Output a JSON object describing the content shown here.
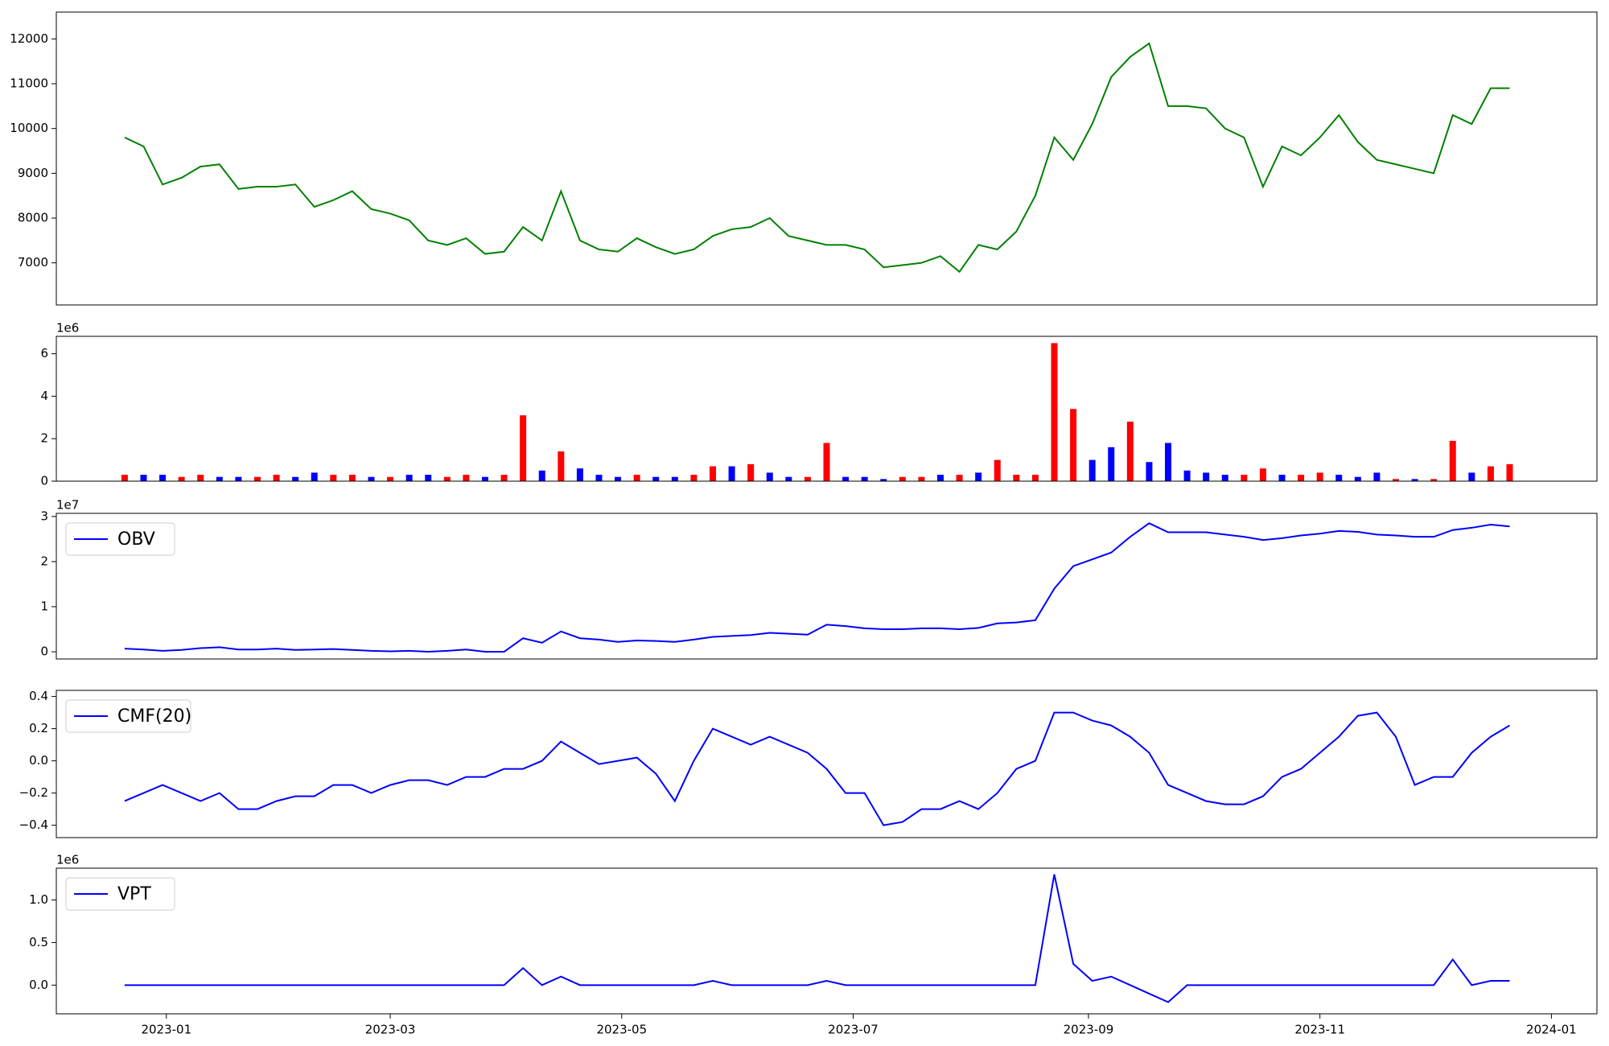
{
  "chart_data": [
    {
      "type": "line",
      "color": "green",
      "x": [
        19347,
        19352,
        19357,
        19362,
        19367,
        19372,
        19377,
        19382,
        19387,
        19392,
        19397,
        19402,
        19407,
        19412,
        19417,
        19422,
        19427,
        19432,
        19437,
        19442,
        19447,
        19452,
        19457,
        19462,
        19467,
        19472,
        19477,
        19482,
        19487,
        19492,
        19497,
        19502,
        19507,
        19512,
        19517,
        19522,
        19527,
        19532,
        19537,
        19542,
        19547,
        19552,
        19557,
        19562,
        19567,
        19572,
        19577,
        19582,
        19587,
        19592,
        19597,
        19602,
        19607,
        19612,
        19617,
        19622,
        19627,
        19632,
        19637,
        19642,
        19647,
        19652,
        19657,
        19662,
        19667,
        19672,
        19677,
        19682,
        19687,
        19692,
        19697,
        19702,
        19707,
        19712
      ],
      "values": [
        9800,
        9600,
        8750,
        8900,
        9150,
        9200,
        8650,
        8700,
        8700,
        8750,
        8250,
        8400,
        8600,
        8200,
        8100,
        7950,
        7500,
        7400,
        7550,
        7200,
        7250,
        7800,
        7500,
        8600,
        7500,
        7300,
        7250,
        7550,
        7350,
        7200,
        7300,
        7600,
        7750,
        7800,
        8000,
        7600,
        7500,
        7400,
        7400,
        7300,
        6900,
        6950,
        7000,
        7150,
        6800,
        7400,
        7300,
        7700,
        8500,
        9800,
        9300,
        10100,
        11150,
        11600,
        11900,
        10500,
        10500,
        10450,
        10000,
        9800,
        8700,
        9600,
        9400,
        9800,
        10300,
        9700,
        9300,
        9200,
        9100,
        9000,
        10300,
        10100,
        10900,
        10900
      ],
      "xlim": [
        19329,
        19735
      ],
      "ylim": [
        6060,
        12600
      ],
      "yticks": [
        7000,
        8000,
        9000,
        10000,
        11000,
        12000
      ]
    },
    {
      "type": "bar",
      "y_offset_label": "1e6",
      "x": [
        19347,
        19352,
        19357,
        19362,
        19367,
        19372,
        19377,
        19382,
        19387,
        19392,
        19397,
        19402,
        19407,
        19412,
        19417,
        19422,
        19427,
        19432,
        19437,
        19442,
        19447,
        19452,
        19457,
        19462,
        19467,
        19472,
        19477,
        19482,
        19487,
        19492,
        19497,
        19502,
        19507,
        19512,
        19517,
        19522,
        19527,
        19532,
        19537,
        19542,
        19547,
        19552,
        19557,
        19562,
        19567,
        19572,
        19577,
        19582,
        19587,
        19592,
        19597,
        19602,
        19607,
        19612,
        19617,
        19622,
        19627,
        19632,
        19637,
        19642,
        19647,
        19652,
        19657,
        19662,
        19667,
        19672,
        19677,
        19682,
        19687,
        19692,
        19697,
        19702,
        19707,
        19712
      ],
      "values": [
        300000,
        300000,
        300000,
        200000,
        300000,
        200000,
        200000,
        200000,
        300000,
        200000,
        400000,
        300000,
        300000,
        200000,
        200000,
        300000,
        300000,
        200000,
        300000,
        200000,
        300000,
        3100000,
        500000,
        1400000,
        600000,
        300000,
        200000,
        300000,
        200000,
        200000,
        300000,
        700000,
        700000,
        800000,
        400000,
        200000,
        200000,
        1800000,
        200000,
        200000,
        100000,
        200000,
        200000,
        300000,
        300000,
        400000,
        1000000,
        300000,
        300000,
        6500000,
        3400000,
        1000000,
        1600000,
        2800000,
        900000,
        1800000,
        500000,
        400000,
        300000,
        300000,
        600000,
        300000,
        300000,
        400000,
        300000,
        200000,
        400000,
        100000,
        100000,
        100000,
        1900000,
        400000,
        700000,
        800000
      ],
      "colors": [
        "red",
        "blue",
        "blue",
        "red",
        "red",
        "blue",
        "blue",
        "red",
        "red",
        "blue",
        "blue",
        "red",
        "red",
        "blue",
        "red",
        "blue",
        "blue",
        "red",
        "red",
        "blue",
        "red",
        "red",
        "blue",
        "red",
        "blue",
        "blue",
        "blue",
        "red",
        "blue",
        "blue",
        "red",
        "red",
        "blue",
        "red",
        "blue",
        "blue",
        "red",
        "red",
        "blue",
        "blue",
        "blue",
        "red",
        "red",
        "blue",
        "red",
        "blue",
        "red",
        "red",
        "red",
        "red",
        "red",
        "blue",
        "blue",
        "red",
        "blue",
        "blue",
        "blue",
        "blue",
        "blue",
        "red",
        "red",
        "blue",
        "red",
        "red",
        "blue",
        "blue",
        "blue",
        "red",
        "blue",
        "red",
        "red",
        "blue",
        "red",
        "red"
      ],
      "xlim": [
        19329,
        19735
      ],
      "ylim": [
        0,
        6820000
      ],
      "yticks": [
        0,
        {
          "value": 2000000,
          "label": "2"
        },
        {
          "value": 4000000,
          "label": "4"
        },
        {
          "value": 6000000,
          "label": "6"
        }
      ]
    },
    {
      "type": "line",
      "y_offset_label": "1e7",
      "legend": "upper left",
      "x": [
        19347,
        19352,
        19357,
        19362,
        19367,
        19372,
        19377,
        19382,
        19387,
        19392,
        19397,
        19402,
        19407,
        19412,
        19417,
        19422,
        19427,
        19432,
        19437,
        19442,
        19447,
        19452,
        19457,
        19462,
        19467,
        19472,
        19477,
        19482,
        19487,
        19492,
        19497,
        19502,
        19507,
        19512,
        19517,
        19522,
        19527,
        19532,
        19537,
        19542,
        19547,
        19552,
        19557,
        19562,
        19567,
        19572,
        19577,
        19582,
        19587,
        19592,
        19597,
        19602,
        19607,
        19612,
        19617,
        19622,
        19627,
        19632,
        19637,
        19642,
        19647,
        19652,
        19657,
        19662,
        19667,
        19672,
        19677,
        19682,
        19687,
        19692,
        19697,
        19702,
        19707,
        19712
      ],
      "series": [
        {
          "name": "OBV",
          "color": "blue",
          "values": [
            700000,
            500000,
            200000,
            400000,
            800000,
            1000000,
            500000,
            500000,
            700000,
            400000,
            500000,
            600000,
            400000,
            200000,
            100000,
            200000,
            0,
            200000,
            500000,
            0,
            0,
            3000000,
            2000000,
            4500000,
            3000000,
            2700000,
            2200000,
            2500000,
            2400000,
            2200000,
            2700000,
            3300000,
            3500000,
            3700000,
            4200000,
            4000000,
            3800000,
            6000000,
            5700000,
            5200000,
            5000000,
            5000000,
            5200000,
            5200000,
            5000000,
            5300000,
            6300000,
            6500000,
            7000000,
            14000000,
            19000000,
            20500000,
            22000000,
            25500000,
            28500000,
            26500000,
            26500000,
            26500000,
            26000000,
            25500000,
            24800000,
            25200000,
            25800000,
            26200000,
            26800000,
            26600000,
            26000000,
            25800000,
            25500000,
            25500000,
            27000000,
            27500000,
            28200000,
            27800000
          ]
        }
      ],
      "xlim": [
        19329,
        19735
      ],
      "ylim": [
        -1600000,
        30700000
      ],
      "yticks": [
        0,
        {
          "value": 10000000,
          "label": "1"
        },
        {
          "value": 20000000,
          "label": "2"
        },
        {
          "value": 30000000,
          "label": "3"
        }
      ]
    },
    {
      "type": "line",
      "legend": "upper left",
      "x": [
        19347,
        19352,
        19357,
        19362,
        19367,
        19372,
        19377,
        19382,
        19387,
        19392,
        19397,
        19402,
        19407,
        19412,
        19417,
        19422,
        19427,
        19432,
        19437,
        19442,
        19447,
        19452,
        19457,
        19462,
        19467,
        19472,
        19477,
        19482,
        19487,
        19492,
        19497,
        19502,
        19507,
        19512,
        19517,
        19522,
        19527,
        19532,
        19537,
        19542,
        19547,
        19552,
        19557,
        19562,
        19567,
        19572,
        19577,
        19582,
        19587,
        19592,
        19597,
        19602,
        19607,
        19612,
        19617,
        19622,
        19627,
        19632,
        19637,
        19642,
        19647,
        19652,
        19657,
        19662,
        19667,
        19672,
        19677,
        19682,
        19687,
        19692,
        19697,
        19702,
        19707,
        19712
      ],
      "series": [
        {
          "name": "CMF(20)",
          "color": "blue",
          "values": [
            -0.25,
            -0.2,
            -0.15,
            -0.2,
            -0.25,
            -0.2,
            -0.3,
            -0.3,
            -0.25,
            -0.22,
            -0.22,
            -0.15,
            -0.15,
            -0.2,
            -0.15,
            -0.12,
            -0.12,
            -0.15,
            -0.1,
            -0.1,
            -0.05,
            -0.05,
            0.0,
            0.12,
            0.05,
            -0.02,
            0.0,
            0.02,
            -0.08,
            -0.25,
            0.0,
            0.2,
            0.15,
            0.1,
            0.15,
            0.1,
            0.05,
            -0.05,
            -0.2,
            -0.2,
            -0.4,
            -0.38,
            -0.3,
            -0.3,
            -0.25,
            -0.3,
            -0.2,
            -0.05,
            0.0,
            0.3,
            0.3,
            0.25,
            0.22,
            0.15,
            0.05,
            -0.15,
            -0.2,
            -0.25,
            -0.27,
            -0.27,
            -0.22,
            -0.1,
            -0.05,
            0.05,
            0.15,
            0.28,
            0.3,
            0.15,
            -0.15,
            -0.1,
            -0.1,
            0.05,
            0.15,
            0.22
          ]
        }
      ],
      "xlim": [
        19329,
        19735
      ],
      "ylim": [
        -0.477,
        0.438
      ],
      "yticks": [
        {
          "value": -0.4,
          "label": "−0.4"
        },
        {
          "value": -0.2,
          "label": "−0.2"
        },
        {
          "value": 0,
          "label": "0.0"
        },
        0.2,
        0.4
      ]
    },
    {
      "type": "line",
      "y_offset_label": "1e6",
      "legend": "upper left",
      "x": [
        19347,
        19352,
        19357,
        19362,
        19367,
        19372,
        19377,
        19382,
        19387,
        19392,
        19397,
        19402,
        19407,
        19412,
        19417,
        19422,
        19427,
        19432,
        19437,
        19442,
        19447,
        19452,
        19457,
        19462,
        19467,
        19472,
        19477,
        19482,
        19487,
        19492,
        19497,
        19502,
        19507,
        19512,
        19517,
        19522,
        19527,
        19532,
        19537,
        19542,
        19547,
        19552,
        19557,
        19562,
        19567,
        19572,
        19577,
        19582,
        19587,
        19592,
        19597,
        19602,
        19607,
        19612,
        19617,
        19622,
        19627,
        19632,
        19637,
        19642,
        19647,
        19652,
        19657,
        19662,
        19667,
        19672,
        19677,
        19682,
        19687,
        19692,
        19697,
        19702,
        19707,
        19712
      ],
      "series": [
        {
          "name": "VPT",
          "color": "blue",
          "values": [
            0,
            0,
            0,
            0,
            0,
            0,
            0,
            0,
            0,
            0,
            0,
            0,
            0,
            0,
            0,
            0,
            0,
            0,
            0,
            0,
            0,
            200000,
            0,
            100000,
            0,
            0,
            0,
            0,
            0,
            0,
            0,
            50000,
            0,
            0,
            0,
            0,
            0,
            50000,
            0,
            0,
            0,
            0,
            0,
            0,
            0,
            0,
            0,
            0,
            0,
            1300000,
            250000,
            50000,
            100000,
            0,
            -100000,
            -200000,
            0,
            0,
            0,
            0,
            0,
            0,
            0,
            0,
            0,
            0,
            0,
            0,
            0,
            0,
            300000,
            0,
            50000,
            50000
          ]
        }
      ],
      "xlim": [
        19329,
        19735
      ],
      "ylim": [
        -337000,
        1373000
      ],
      "yticks": [
        {
          "value": 0,
          "label": "0.0"
        },
        {
          "value": 500000,
          "label": "0.5"
        },
        {
          "value": 1000000,
          "label": "1.0"
        }
      ],
      "xticks": [
        {
          "value": 19358,
          "label": "2023-01"
        },
        {
          "value": 19417,
          "label": "2023-03"
        },
        {
          "value": 19478,
          "label": "2023-05"
        },
        {
          "value": 19539,
          "label": "2023-07"
        },
        {
          "value": 19601,
          "label": "2023-09"
        },
        {
          "value": 19662,
          "label": "2023-11"
        },
        {
          "value": 19723,
          "label": "2024-01"
        }
      ]
    }
  ]
}
